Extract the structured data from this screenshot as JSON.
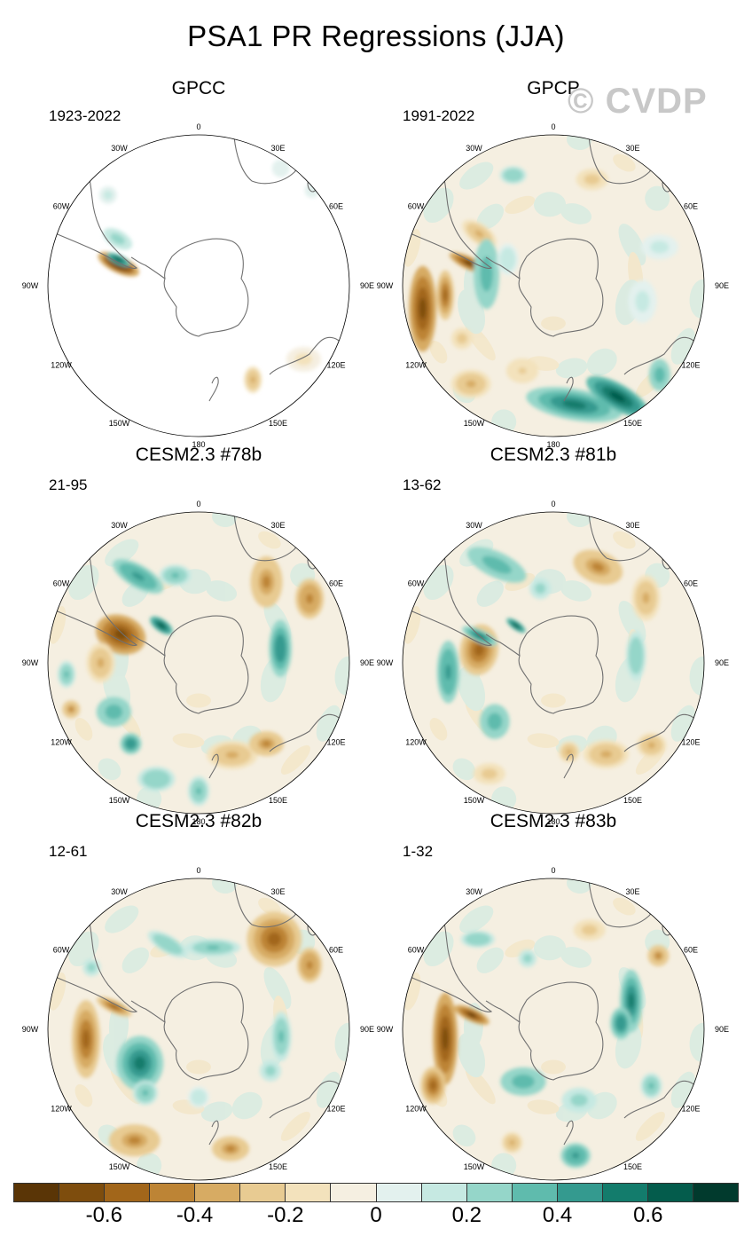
{
  "title": "PSA1 PR Regressions (JJA)",
  "watermark": "© CVDP",
  "lon_labels": [
    "0",
    "30E",
    "60E",
    "90E",
    "120E",
    "150E",
    "180",
    "150W",
    "120W",
    "90W",
    "60W",
    "30W"
  ],
  "colors": {
    "dry_dark": "#5a3506",
    "wet_dark": "#013a2d",
    "neutral": "#f5efe1",
    "land_outline": "#707070"
  },
  "panels": [
    {
      "title": "GPCC",
      "years": "1923-2022",
      "pattern": "gpcc"
    },
    {
      "title": "GPCP",
      "years": "1991-2022",
      "pattern": "gpcp"
    },
    {
      "title": "CESM2.3 #78b",
      "years": "21-95",
      "pattern": "m78"
    },
    {
      "title": "CESM2.3 #81b",
      "years": "13-62",
      "pattern": "m81"
    },
    {
      "title": "CESM2.3 #82b",
      "years": "12-61",
      "pattern": "m82"
    },
    {
      "title": "CESM2.3 #83b",
      "years": "1-32",
      "pattern": "m83"
    }
  ],
  "colorbar": {
    "colors": [
      "#5a3506",
      "#7e4d0d",
      "#a2661a",
      "#bd8435",
      "#d7ab63",
      "#e8cb92",
      "#f3e2bc",
      "#f5efe1",
      "#e3f1ee",
      "#c6e9e2",
      "#95d6c9",
      "#5fbbad",
      "#349a8f",
      "#137c6c",
      "#045c4c",
      "#013a2d"
    ],
    "levels": [
      -0.7,
      -0.6,
      -0.5,
      -0.4,
      -0.3,
      -0.2,
      -0.1,
      -0.05,
      0.05,
      0.1,
      0.2,
      0.3,
      0.4,
      0.5,
      0.6,
      0.7
    ],
    "labels": [
      "-0.6",
      "-0.4",
      "-0.2",
      "0",
      "0.2",
      "0.4",
      "0.6"
    ]
  }
}
